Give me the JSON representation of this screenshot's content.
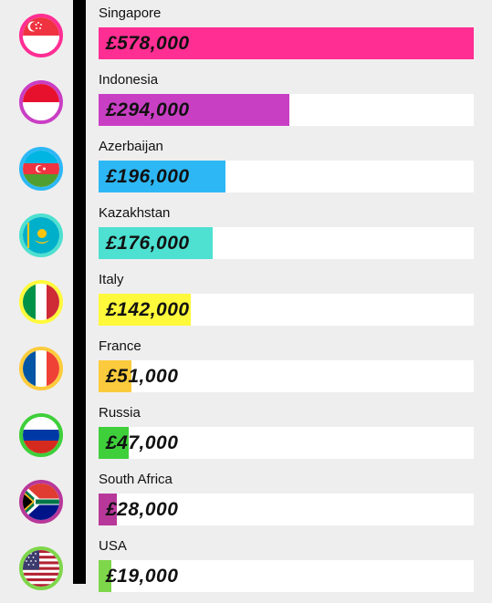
{
  "chart_data": {
    "type": "bar",
    "orientation": "horizontal",
    "xlim": [
      0,
      578000
    ],
    "categories": [
      "Singapore",
      "Indonesia",
      "Azerbaijan",
      "Kazakhstan",
      "Italy",
      "France",
      "Russia",
      "South Africa",
      "USA"
    ],
    "values": [
      578000,
      294000,
      196000,
      176000,
      142000,
      51000,
      47000,
      28000,
      19000
    ],
    "value_labels": [
      "£578,000",
      "£294,000",
      "£196,000",
      "£176,000",
      "£142,000",
      "£51,000",
      "£47,000",
      "£28,000",
      "£19,000"
    ],
    "bar_colors": [
      "#ff2e93",
      "#c93fc4",
      "#2db8f5",
      "#4ee0d0",
      "#fff93b",
      "#fccb3d",
      "#3ecf3a",
      "#b8389a",
      "#7ed64a"
    ],
    "flag_icons": [
      "singapore-flag-icon",
      "indonesia-flag-icon",
      "azerbaijan-flag-icon",
      "kazakhstan-flag-icon",
      "italy-flag-icon",
      "france-flag-icon",
      "russia-flag-icon",
      "south-africa-flag-icon",
      "usa-flag-icon"
    ]
  }
}
